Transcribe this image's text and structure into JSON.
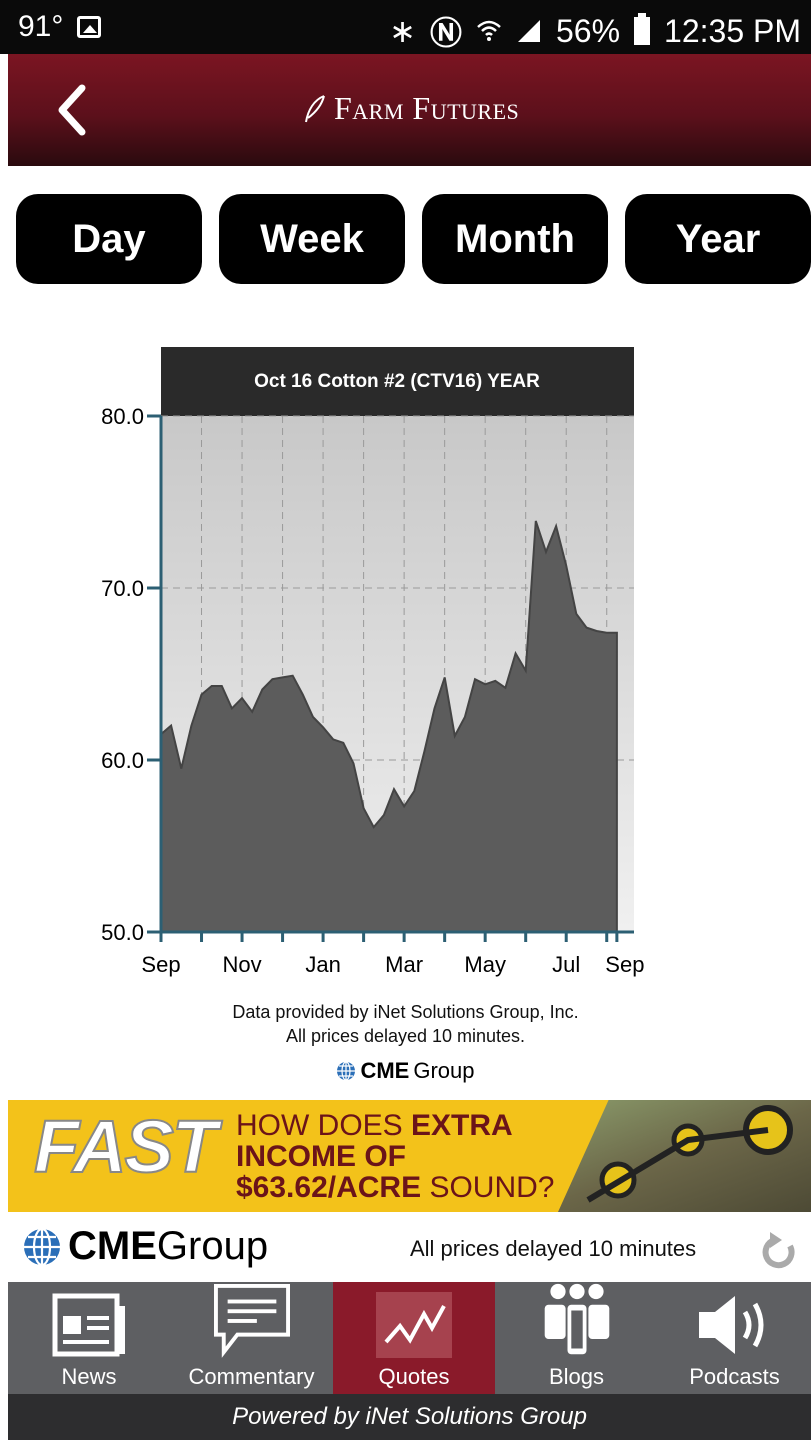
{
  "status_bar": {
    "temperature": "91°",
    "battery": "56%",
    "time": "12:35 PM"
  },
  "header": {
    "logo_text": "Farm Futures"
  },
  "range_buttons": [
    "Day",
    "Week",
    "Month",
    "Year"
  ],
  "chart_data": {
    "type": "area",
    "title": "Oct 16 Cotton #2 (CTV16) YEAR",
    "xlabel": "",
    "ylabel": "",
    "ylim": [
      50,
      80
    ],
    "yticks": [
      50.0,
      60.0,
      70.0,
      80.0
    ],
    "ytick_labels": [
      "50.0",
      "60.0",
      "70.0",
      "80.0"
    ],
    "xtick_labels": [
      "Sep",
      "Nov",
      "Jan",
      "Mar",
      "May",
      "Jul",
      "Sep"
    ],
    "xtick_positions": [
      0,
      2,
      4,
      6,
      8,
      10,
      11.25
    ],
    "xlim": [
      0,
      11.5
    ],
    "grid": true,
    "x": [
      0,
      0.25,
      0.5,
      0.75,
      1.0,
      1.25,
      1.5,
      1.75,
      2.0,
      2.25,
      2.5,
      2.75,
      3.0,
      3.25,
      3.5,
      3.75,
      4.0,
      4.25,
      4.5,
      4.75,
      5.0,
      5.25,
      5.5,
      5.75,
      6.0,
      6.25,
      6.5,
      6.75,
      7.0,
      7.25,
      7.5,
      7.75,
      8.0,
      8.25,
      8.5,
      8.75,
      9.0,
      9.25,
      9.5,
      9.75,
      10.0,
      10.25,
      10.5,
      10.75,
      11.0,
      11.25
    ],
    "values": [
      61.5,
      62.0,
      59.5,
      62.0,
      63.8,
      64.3,
      64.3,
      63.0,
      63.6,
      62.8,
      64.1,
      64.7,
      64.8,
      64.9,
      63.8,
      62.5,
      61.9,
      61.2,
      61.0,
      59.8,
      57.2,
      56.1,
      56.8,
      58.3,
      57.3,
      58.2,
      60.5,
      63.0,
      64.8,
      61.4,
      62.5,
      64.7,
      64.4,
      64.6,
      64.2,
      66.2,
      65.2,
      73.9,
      72.1,
      73.6,
      71.3,
      68.5,
      67.7,
      67.5,
      67.4,
      67.4
    ]
  },
  "credits": {
    "line1": "Data provided by iNet Solutions Group, Inc.",
    "line2": "All prices delayed 10 minutes.",
    "cme_small_bold": "CME",
    "cme_small_rest": "Group"
  },
  "ad": {
    "logo": "FAST",
    "line1_a": "HOW DOES ",
    "line1_b": "EXTRA",
    "line2": "INCOME OF",
    "line3_a": "$63.62/ACRE",
    "line3_b": " SOUND?"
  },
  "cme_bar": {
    "brand_bold": "CME",
    "brand_rest": "Group",
    "delay_text": "All prices delayed 10 minutes"
  },
  "tabs": [
    {
      "label": "News",
      "icon": "newspaper-icon"
    },
    {
      "label": "Commentary",
      "icon": "speech-bubble-icon"
    },
    {
      "label": "Quotes",
      "icon": "line-chart-icon"
    },
    {
      "label": "Blogs",
      "icon": "people-icon"
    },
    {
      "label": "Podcasts",
      "icon": "speaker-icon"
    }
  ],
  "footer": {
    "powered_by": "Powered by iNet Solutions Group"
  },
  "colors": {
    "header": "#6e1320",
    "active_tab": "#8a1a2a",
    "tab_bar": "#5e5f62",
    "ad_bg": "#f3c21a",
    "ad_text": "#6b1419",
    "chart_area": "#5f5f5f",
    "axis": "#2c5f73"
  }
}
